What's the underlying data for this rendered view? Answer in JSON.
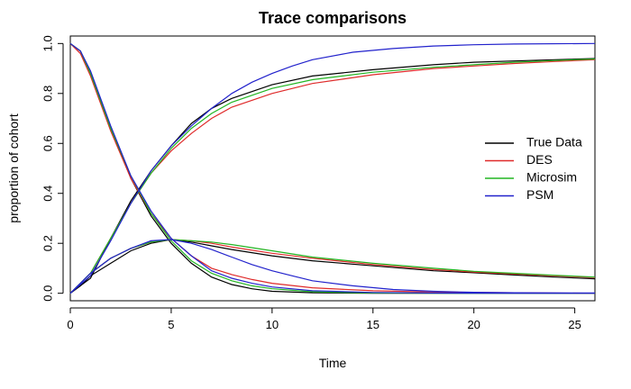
{
  "chart_data": {
    "type": "line",
    "title": "Trace comparisons",
    "xlabel": "Time",
    "ylabel": "proportion of cohort",
    "xlim": [
      0,
      26
    ],
    "ylim": [
      -0.03,
      1.03
    ],
    "x_ticks": [
      0,
      5,
      10,
      15,
      20,
      25
    ],
    "y_ticks": [
      0.0,
      0.2,
      0.4,
      0.6,
      0.8,
      1.0
    ],
    "x_tick_labels": [
      "0",
      "5",
      "10",
      "15",
      "20",
      "25"
    ],
    "y_tick_labels": [
      "0.0",
      "0.2",
      "0.4",
      "0.6",
      "0.8",
      "1.0"
    ],
    "legend_position": "right",
    "legend": [
      {
        "label": "True Data",
        "color": "#000000"
      },
      {
        "label": "DES",
        "color": "#df2a2a"
      },
      {
        "label": "Microsim",
        "color": "#22b522"
      },
      {
        "label": "PSM",
        "color": "#2222cc"
      }
    ],
    "series": [
      {
        "name": "True Data - declining",
        "legend": "True Data",
        "color": "#000000",
        "points": [
          [
            0,
            1.0
          ],
          [
            0.5,
            0.97
          ],
          [
            1,
            0.88
          ],
          [
            2,
            0.66
          ],
          [
            3,
            0.46
          ],
          [
            4,
            0.31
          ],
          [
            5,
            0.2
          ],
          [
            6,
            0.12
          ],
          [
            7,
            0.065
          ],
          [
            8,
            0.035
          ],
          [
            9,
            0.018
          ],
          [
            10,
            0.008
          ],
          [
            12,
            0.002
          ],
          [
            15,
            0.0
          ],
          [
            20,
            0.0
          ],
          [
            26,
            0.0
          ]
        ]
      },
      {
        "name": "True Data - middle",
        "legend": "True Data",
        "color": "#000000",
        "points": [
          [
            0,
            0.0
          ],
          [
            0.5,
            0.03
          ],
          [
            1,
            0.07
          ],
          [
            2,
            0.12
          ],
          [
            3,
            0.17
          ],
          [
            4,
            0.2
          ],
          [
            5,
            0.215
          ],
          [
            6,
            0.205
          ],
          [
            7,
            0.19
          ],
          [
            8,
            0.175
          ],
          [
            10,
            0.15
          ],
          [
            12,
            0.13
          ],
          [
            15,
            0.11
          ],
          [
            18,
            0.09
          ],
          [
            20,
            0.082
          ],
          [
            22,
            0.073
          ],
          [
            24,
            0.065
          ],
          [
            26,
            0.058
          ]
        ]
      },
      {
        "name": "True Data - increasing",
        "legend": "True Data",
        "color": "#000000",
        "points": [
          [
            0,
            0.0
          ],
          [
            1,
            0.06
          ],
          [
            2,
            0.22
          ],
          [
            3,
            0.37
          ],
          [
            4,
            0.49
          ],
          [
            5,
            0.59
          ],
          [
            6,
            0.68
          ],
          [
            7,
            0.74
          ],
          [
            8,
            0.78
          ],
          [
            10,
            0.835
          ],
          [
            12,
            0.87
          ],
          [
            15,
            0.895
          ],
          [
            18,
            0.915
          ],
          [
            20,
            0.925
          ],
          [
            22,
            0.93
          ],
          [
            24,
            0.935
          ],
          [
            26,
            0.94
          ]
        ]
      },
      {
        "name": "DES - declining",
        "legend": "DES",
        "color": "#df2a2a",
        "points": [
          [
            0,
            1.0
          ],
          [
            0.5,
            0.96
          ],
          [
            1,
            0.87
          ],
          [
            2,
            0.65
          ],
          [
            3,
            0.46
          ],
          [
            4,
            0.32
          ],
          [
            5,
            0.22
          ],
          [
            6,
            0.15
          ],
          [
            7,
            0.1
          ],
          [
            8,
            0.075
          ],
          [
            9,
            0.055
          ],
          [
            10,
            0.04
          ],
          [
            12,
            0.022
          ],
          [
            15,
            0.01
          ],
          [
            18,
            0.005
          ],
          [
            22,
            0.002
          ],
          [
            26,
            0.0
          ]
        ]
      },
      {
        "name": "DES - middle",
        "legend": "DES",
        "color": "#df2a2a",
        "points": [
          [
            0,
            0.0
          ],
          [
            1,
            0.08
          ],
          [
            2,
            0.14
          ],
          [
            3,
            0.18
          ],
          [
            4,
            0.205
          ],
          [
            5,
            0.215
          ],
          [
            6,
            0.21
          ],
          [
            7,
            0.2
          ],
          [
            8,
            0.185
          ],
          [
            10,
            0.16
          ],
          [
            12,
            0.14
          ],
          [
            15,
            0.115
          ],
          [
            18,
            0.095
          ],
          [
            20,
            0.085
          ],
          [
            22,
            0.077
          ],
          [
            24,
            0.07
          ],
          [
            26,
            0.063
          ]
        ]
      },
      {
        "name": "DES - increasing",
        "legend": "DES",
        "color": "#df2a2a",
        "points": [
          [
            0,
            0.0
          ],
          [
            1,
            0.08
          ],
          [
            2,
            0.22
          ],
          [
            3,
            0.36
          ],
          [
            4,
            0.48
          ],
          [
            5,
            0.57
          ],
          [
            6,
            0.64
          ],
          [
            7,
            0.7
          ],
          [
            8,
            0.745
          ],
          [
            10,
            0.8
          ],
          [
            12,
            0.84
          ],
          [
            15,
            0.875
          ],
          [
            18,
            0.9
          ],
          [
            20,
            0.91
          ],
          [
            22,
            0.92
          ],
          [
            24,
            0.928
          ],
          [
            26,
            0.935
          ]
        ]
      },
      {
        "name": "Microsim - declining",
        "legend": "Microsim",
        "color": "#22b522",
        "points": [
          [
            0,
            1.0
          ],
          [
            0.5,
            0.97
          ],
          [
            1,
            0.88
          ],
          [
            2,
            0.66
          ],
          [
            3,
            0.47
          ],
          [
            4,
            0.32
          ],
          [
            5,
            0.21
          ],
          [
            6,
            0.13
          ],
          [
            7,
            0.08
          ],
          [
            8,
            0.05
          ],
          [
            9,
            0.03
          ],
          [
            10,
            0.018
          ],
          [
            12,
            0.006
          ],
          [
            15,
            0.001
          ],
          [
            20,
            0.0
          ],
          [
            26,
            0.0
          ]
        ]
      },
      {
        "name": "Microsim - middle",
        "legend": "Microsim",
        "color": "#22b522",
        "points": [
          [
            0,
            0.0
          ],
          [
            1,
            0.08
          ],
          [
            2,
            0.14
          ],
          [
            3,
            0.18
          ],
          [
            4,
            0.205
          ],
          [
            5,
            0.215
          ],
          [
            6,
            0.21
          ],
          [
            7,
            0.205
          ],
          [
            8,
            0.195
          ],
          [
            10,
            0.17
          ],
          [
            12,
            0.145
          ],
          [
            15,
            0.12
          ],
          [
            18,
            0.1
          ],
          [
            20,
            0.088
          ],
          [
            22,
            0.08
          ],
          [
            24,
            0.072
          ],
          [
            26,
            0.065
          ]
        ]
      },
      {
        "name": "Microsim - increasing",
        "legend": "Microsim",
        "color": "#22b522",
        "points": [
          [
            0,
            0.0
          ],
          [
            1,
            0.08
          ],
          [
            2,
            0.22
          ],
          [
            3,
            0.36
          ],
          [
            4,
            0.48
          ],
          [
            5,
            0.58
          ],
          [
            6,
            0.66
          ],
          [
            7,
            0.72
          ],
          [
            8,
            0.765
          ],
          [
            10,
            0.82
          ],
          [
            12,
            0.855
          ],
          [
            15,
            0.885
          ],
          [
            18,
            0.905
          ],
          [
            20,
            0.915
          ],
          [
            22,
            0.925
          ],
          [
            24,
            0.932
          ],
          [
            26,
            0.938
          ]
        ]
      },
      {
        "name": "PSM - declining",
        "legend": "PSM",
        "color": "#2222cc",
        "points": [
          [
            0,
            1.0
          ],
          [
            0.5,
            0.97
          ],
          [
            1,
            0.89
          ],
          [
            2,
            0.67
          ],
          [
            3,
            0.47
          ],
          [
            4,
            0.33
          ],
          [
            5,
            0.22
          ],
          [
            6,
            0.15
          ],
          [
            7,
            0.09
          ],
          [
            8,
            0.06
          ],
          [
            9,
            0.04
          ],
          [
            10,
            0.025
          ],
          [
            12,
            0.01
          ],
          [
            15,
            0.003
          ],
          [
            18,
            0.001
          ],
          [
            22,
            0.0
          ],
          [
            26,
            0.0
          ]
        ]
      },
      {
        "name": "PSM - middle",
        "legend": "PSM",
        "color": "#2222cc",
        "points": [
          [
            0,
            0.0
          ],
          [
            1,
            0.08
          ],
          [
            2,
            0.14
          ],
          [
            3,
            0.18
          ],
          [
            4,
            0.21
          ],
          [
            5,
            0.215
          ],
          [
            6,
            0.2
          ],
          [
            7,
            0.175
          ],
          [
            8,
            0.145
          ],
          [
            9,
            0.115
          ],
          [
            10,
            0.09
          ],
          [
            11,
            0.07
          ],
          [
            12,
            0.05
          ],
          [
            14,
            0.03
          ],
          [
            16,
            0.015
          ],
          [
            18,
            0.008
          ],
          [
            20,
            0.004
          ],
          [
            22,
            0.002
          ],
          [
            26,
            0.001
          ]
        ]
      },
      {
        "name": "PSM - increasing",
        "legend": "PSM",
        "color": "#2222cc",
        "points": [
          [
            0,
            0.0
          ],
          [
            1,
            0.07
          ],
          [
            2,
            0.21
          ],
          [
            3,
            0.36
          ],
          [
            4,
            0.49
          ],
          [
            5,
            0.59
          ],
          [
            6,
            0.67
          ],
          [
            7,
            0.74
          ],
          [
            8,
            0.8
          ],
          [
            9,
            0.845
          ],
          [
            10,
            0.88
          ],
          [
            11,
            0.91
          ],
          [
            12,
            0.935
          ],
          [
            14,
            0.965
          ],
          [
            16,
            0.98
          ],
          [
            18,
            0.99
          ],
          [
            20,
            0.995
          ],
          [
            22,
            0.998
          ],
          [
            26,
            1.0
          ]
        ]
      }
    ]
  }
}
